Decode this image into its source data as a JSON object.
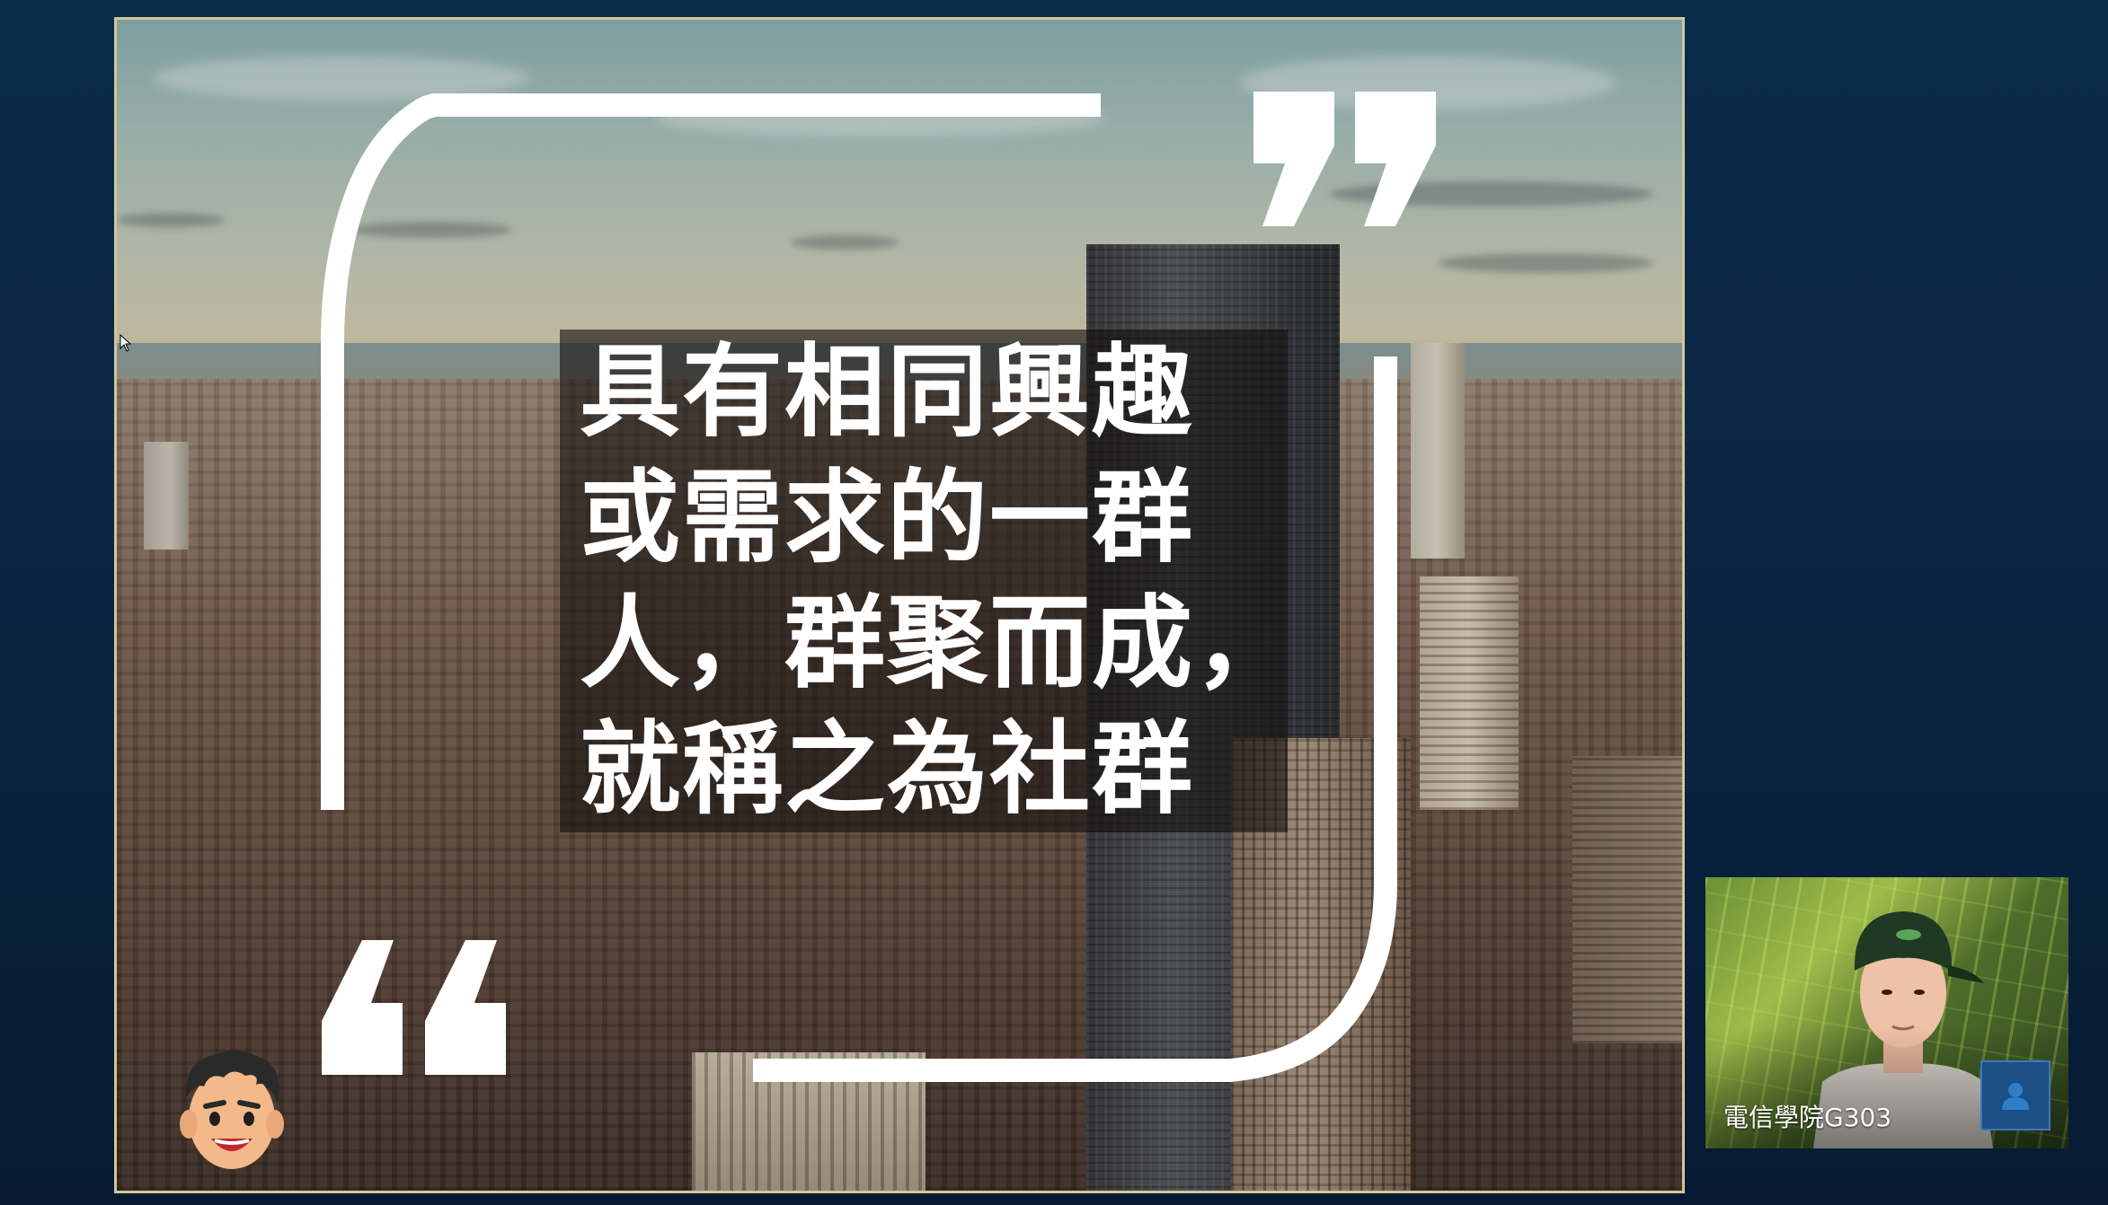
{
  "slide": {
    "lines": [
      "具有相同興趣",
      "或需求的一群",
      "人，群聚而成，",
      "就稱之為社群"
    ],
    "quote_mark_open": "“",
    "quote_mark_close": "”"
  },
  "webcam": {
    "participant_name": "電信學院G303",
    "profile_icon": "person-icon"
  },
  "colors": {
    "background": "#0b2744",
    "slide_border": "#cfc79a",
    "text": "#ffffff",
    "webcam_button": "#1c4f86"
  }
}
